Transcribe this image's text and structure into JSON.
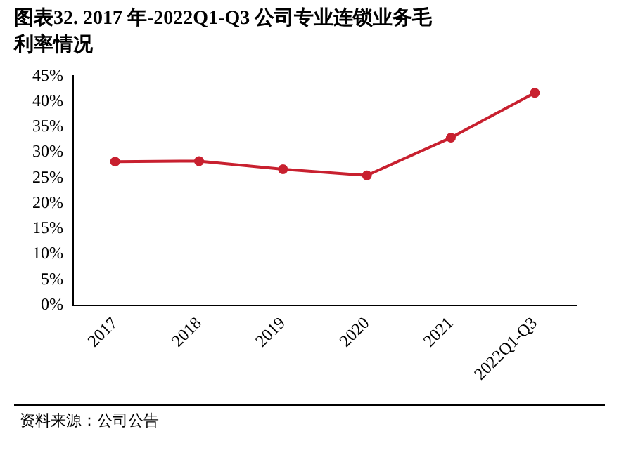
{
  "chart_data": {
    "type": "line",
    "title": "图表32. 2017 年-2022Q1-Q3 公司专业连锁业务毛利率情况",
    "categories": [
      "2017",
      "2018",
      "2019",
      "2020",
      "2021",
      "2022Q1-Q3"
    ],
    "series": [
      {
        "color": "#c8202f",
        "values": [
          28.2,
          28.3,
          26.7,
          25.5,
          32.9,
          41.7
        ]
      }
    ],
    "ylim": [
      0,
      45
    ],
    "yticks": [
      {
        "value": 0,
        "label": "0%"
      },
      {
        "value": 5,
        "label": "5%"
      },
      {
        "value": 10,
        "label": "10%"
      },
      {
        "value": 15,
        "label": "15%"
      },
      {
        "value": 20,
        "label": "20%"
      },
      {
        "value": 25,
        "label": "25%"
      },
      {
        "value": 30,
        "label": "30%"
      },
      {
        "value": 35,
        "label": "35%"
      },
      {
        "value": 40,
        "label": "40%"
      },
      {
        "value": 45,
        "label": "45%"
      }
    ],
    "grid": false,
    "legend": false,
    "marker": "circle",
    "line_style": "solid",
    "annotations": [
      "资料来源：公司公告"
    ]
  }
}
